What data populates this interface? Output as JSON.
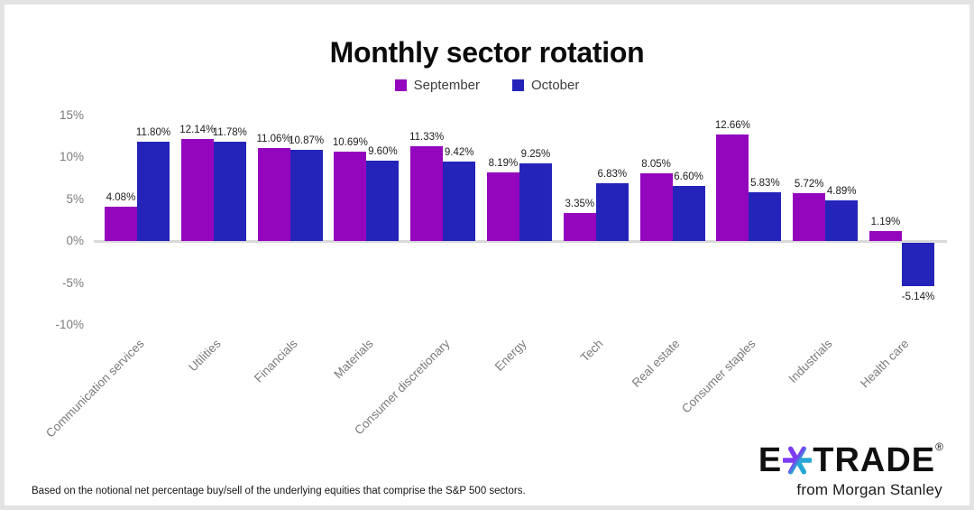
{
  "chart_data": {
    "type": "bar",
    "title": "Monthly sector rotation",
    "categories": [
      "Communication services",
      "Utilities",
      "Financials",
      "Materials",
      "Consumer discretionary",
      "Energy",
      "Tech",
      "Real estate",
      "Consumer staples",
      "Industrials",
      "Health care"
    ],
    "series": [
      {
        "name": "September",
        "color": "#9406be",
        "values": [
          4.08,
          12.14,
          11.06,
          10.69,
          11.33,
          8.19,
          3.35,
          8.05,
          12.66,
          5.72,
          1.19
        ]
      },
      {
        "name": "October",
        "color": "#2424ba",
        "values": [
          11.8,
          11.78,
          10.87,
          9.6,
          9.42,
          9.25,
          6.83,
          6.6,
          5.83,
          4.89,
          -5.14
        ]
      }
    ],
    "y_ticks": [
      15,
      10,
      5,
      0,
      -5,
      -10
    ],
    "ylim": [
      -10,
      15
    ],
    "y_tick_suffix": "%",
    "value_label_suffix": "%",
    "value_label_decimals": 2,
    "legend_position": "top",
    "grid": false
  },
  "footnote": "Based on the notional net percentage buy/sell of the underlying equities that comprise the S&P 500 sectors.",
  "logo": {
    "brand_left": "E",
    "brand_right": "TRADE",
    "registered_mark": "®",
    "tagline": "from Morgan Stanley",
    "star_purple": "#7d3bf0",
    "star_teal": "#28a7d6"
  },
  "colors": {
    "axis_text": "#7b7b7b",
    "axis_line": "#d9d9d9",
    "value_text": "#1b1b1b",
    "frame_border": "#e3e3e3"
  }
}
